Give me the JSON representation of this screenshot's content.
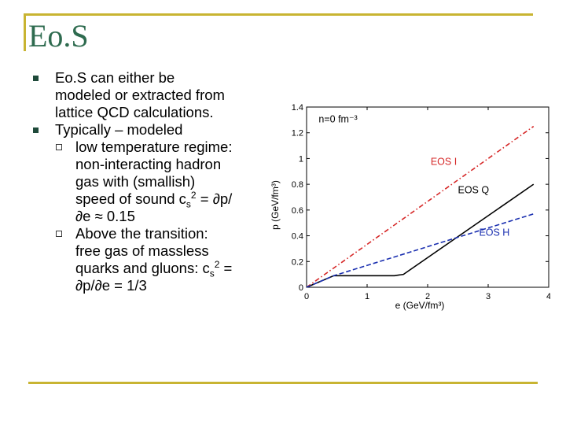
{
  "slide": {
    "title": "Eo.S",
    "bullets": [
      {
        "text": "Eo.S can either be modeled or extracted from lattice QCD calculations."
      },
      {
        "text": "Typically – modeled"
      }
    ],
    "subbullets": [
      {
        "line1": "low temperature regime: non-interacting hadron gas with (smallish) speed of sound c",
        "sub": "s",
        "sup": "2",
        "line2": " = ∂p/∂e ≈ 0.15"
      },
      {
        "line1": "Above the transition: free gas of massless quarks and gluons: c",
        "sub": "s",
        "sup": "2",
        "line2": " = ∂p/∂e = 1/3"
      }
    ]
  },
  "chart_data": {
    "type": "line",
    "xlabel": "e (GeV/fm³)",
    "ylabel": "p (GeV/fm³)",
    "xlim": [
      0,
      4
    ],
    "ylim": [
      0,
      1.4
    ],
    "x_ticks": [
      "0",
      "1",
      "2",
      "3",
      "4"
    ],
    "y_ticks": [
      "0",
      "0.2",
      "0.4",
      "0.6",
      "0.8",
      "1",
      "1.2",
      "1.4"
    ],
    "annotation": "n=0 fm⁻³",
    "series": [
      {
        "name": "EOS I",
        "style": "dash-dot",
        "color": "#d62828",
        "x": [
          0,
          3.75
        ],
        "y": [
          0,
          1.25
        ]
      },
      {
        "name": "EOS Q",
        "style": "solid",
        "color": "#000000",
        "x": [
          0,
          0.45,
          1.45,
          1.6,
          3.75
        ],
        "y": [
          0,
          0.09,
          0.09,
          0.1,
          0.8
        ]
      },
      {
        "name": "EOS H",
        "style": "dashed",
        "color": "#1a2fb0",
        "x": [
          0,
          0.45,
          3.75
        ],
        "y": [
          0,
          0.09,
          0.57
        ]
      }
    ],
    "labels": [
      {
        "text": "EOS I",
        "color": "#d62828",
        "x": 2.05,
        "y": 0.95
      },
      {
        "text": "EOS Q",
        "color": "#000000",
        "x": 2.5,
        "y": 0.73
      },
      {
        "text": "EOS H",
        "color": "#1a2fb0",
        "x": 2.85,
        "y": 0.4
      }
    ],
    "grid": false
  },
  "colors": {
    "accent": "#c8b432",
    "title": "#2e6b4f"
  }
}
